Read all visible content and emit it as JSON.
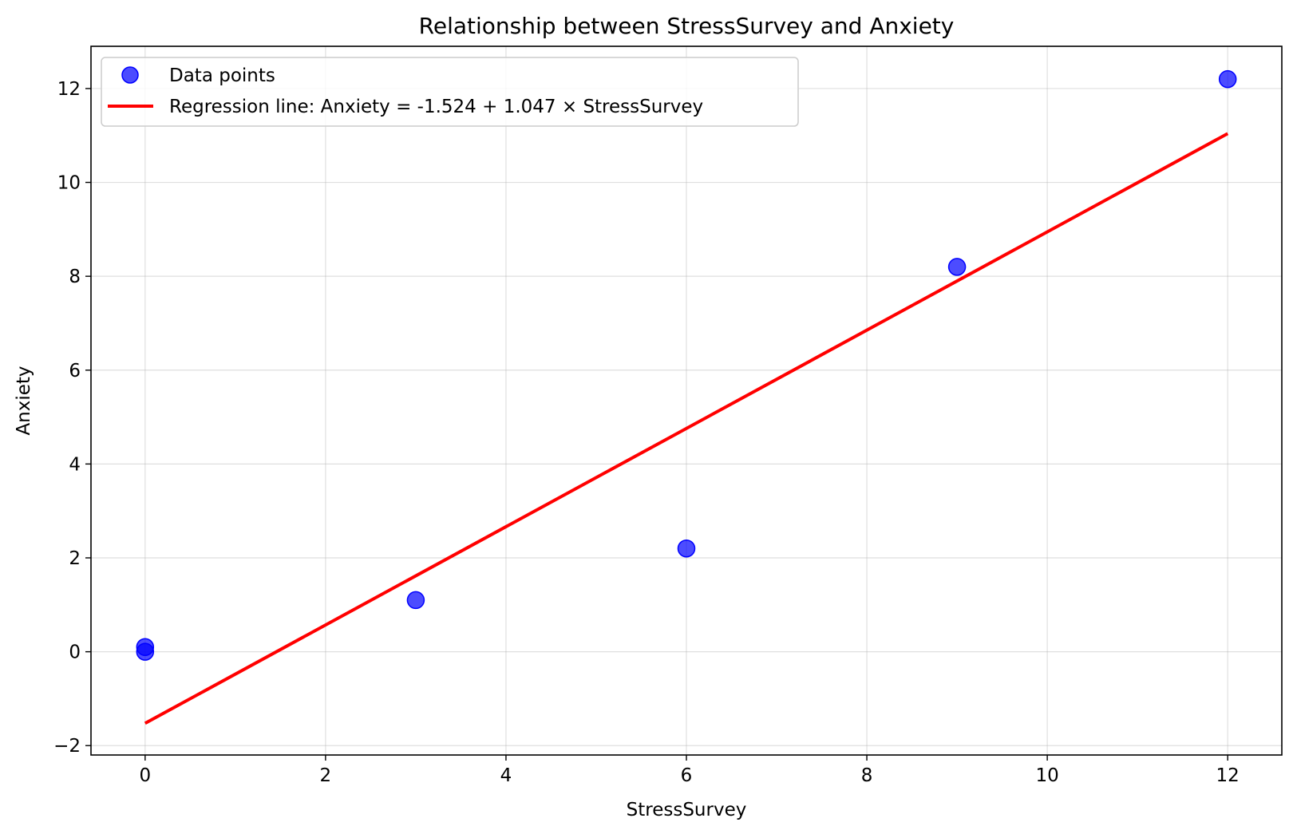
{
  "chart_data": {
    "type": "scatter",
    "title": "Relationship between StressSurvey and Anxiety",
    "xlabel": "StressSurvey",
    "ylabel": "Anxiety",
    "xlim": [
      -0.6,
      12.6
    ],
    "ylim": [
      -2.2,
      12.9
    ],
    "xticks": [
      0,
      2,
      4,
      6,
      8,
      10,
      12
    ],
    "yticks": [
      -2,
      0,
      2,
      4,
      6,
      8,
      10,
      12
    ],
    "xtick_labels": [
      "0",
      "2",
      "4",
      "6",
      "8",
      "10",
      "12"
    ],
    "ytick_labels": [
      "−2",
      "0",
      "2",
      "4",
      "6",
      "8",
      "10",
      "12"
    ],
    "grid": true,
    "legend_position": "upper-left",
    "series": [
      {
        "name": "Data points",
        "kind": "scatter",
        "color": "#0000ff",
        "x": [
          0,
          0,
          3,
          6,
          9,
          12
        ],
        "y": [
          0,
          0.1,
          1.1,
          2.2,
          8.2,
          12.2
        ]
      },
      {
        "name": "Regression line: Anxiety = -1.524 + 1.047 × StressSurvey",
        "kind": "line",
        "color": "#ff0000",
        "intercept": -1.524,
        "slope": 1.047,
        "x_range": [
          0,
          12
        ]
      }
    ]
  }
}
